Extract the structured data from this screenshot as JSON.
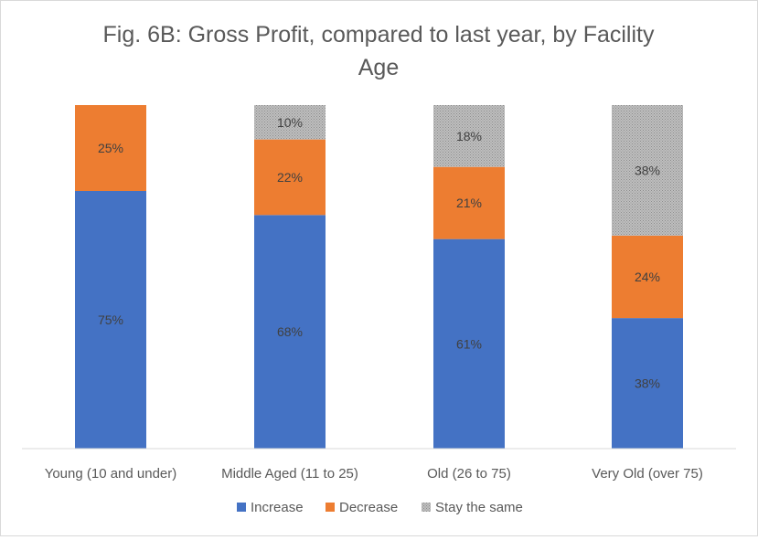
{
  "chart_data": {
    "type": "bar",
    "stacked": true,
    "percent_stacked": true,
    "title": "Fig. 6B: Gross Profit, compared to last year, by Facility Age",
    "title_lines": [
      "Fig. 6B: Gross Profit, compared to last year, by Facility",
      "Age"
    ],
    "categories": [
      "Young (10 and under)",
      "Middle Aged (11 to 25)",
      "Old (26 to 75)",
      "Very Old (over 75)"
    ],
    "series": [
      {
        "name": "Increase",
        "color": "#4472C4",
        "values": [
          75,
          68,
          61,
          38
        ],
        "labels": [
          "75%",
          "68%",
          "61%",
          "38%"
        ]
      },
      {
        "name": "Decrease",
        "color": "#ED7D31",
        "values": [
          25,
          22,
          21,
          24
        ],
        "labels": [
          "25%",
          "22%",
          "21%",
          "24%"
        ]
      },
      {
        "name": "Stay the same",
        "color": "#A5A5A5",
        "values": [
          0,
          10,
          18,
          38
        ],
        "labels": [
          "",
          "10%",
          "18%",
          "38%"
        ]
      }
    ],
    "ylim": [
      0,
      100
    ],
    "grid": false,
    "legend": "bottom",
    "xlabel": "",
    "ylabel": ""
  }
}
